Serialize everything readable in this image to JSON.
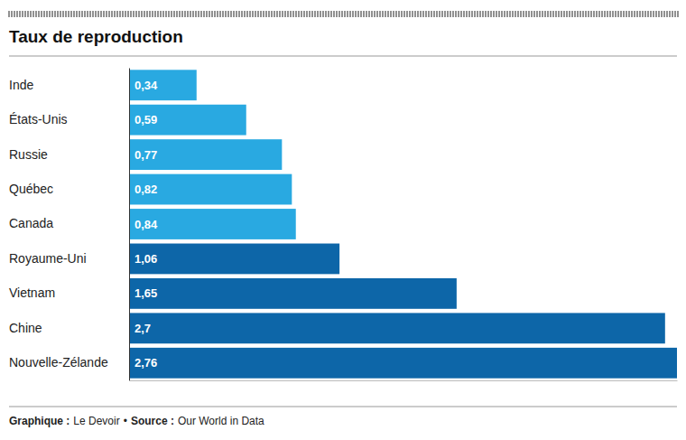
{
  "chart_data": {
    "type": "bar",
    "orientation": "horizontal",
    "title": "Taux de reproduction",
    "categories": [
      "Inde",
      "États-Unis",
      "Russie",
      "Québec",
      "Canada",
      "Royaume-Uni",
      "Vietnam",
      "Chine",
      "Nouvelle-Zélande"
    ],
    "values": [
      0.34,
      0.59,
      0.77,
      0.82,
      0.84,
      1.06,
      1.65,
      2.7,
      2.76
    ],
    "value_labels": [
      "0,34",
      "0,59",
      "0,77",
      "0,82",
      "0,84",
      "1,06",
      "1,65",
      "2,7",
      "2,76"
    ],
    "colors": [
      "#29a9e1",
      "#29a9e1",
      "#29a9e1",
      "#29a9e1",
      "#29a9e1",
      "#0d66a8",
      "#0d66a8",
      "#0d66a8",
      "#0d66a8"
    ],
    "xlim": [
      0,
      2.76
    ],
    "xticks": [],
    "tick_labels": "y",
    "data_labels": true,
    "grid": false,
    "annotations": [
      "Graphique :",
      "Le Devoir",
      "•",
      "Source :",
      "Our World in Data"
    ]
  }
}
